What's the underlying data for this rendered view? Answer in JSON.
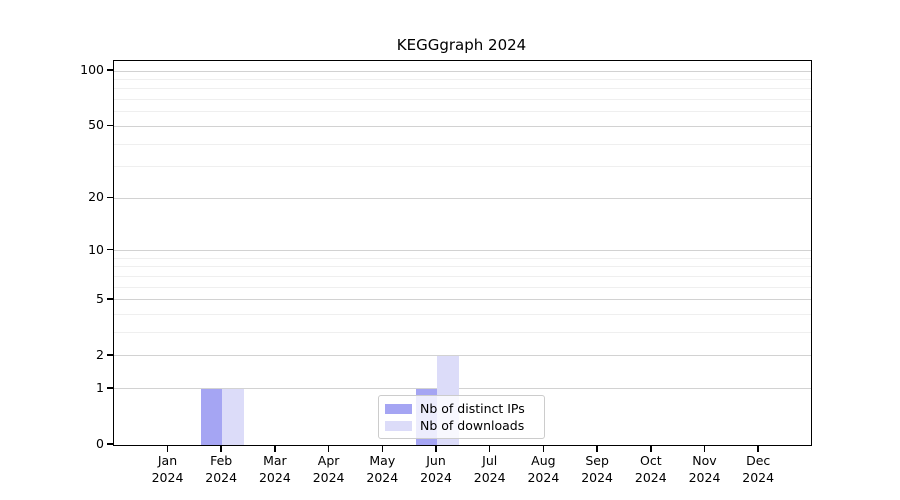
{
  "page": {
    "background": "#ffffff"
  },
  "chart_data": {
    "type": "bar",
    "title": "KEGGgraph 2024",
    "xlabel": "",
    "ylabel": "",
    "x_tick_months": [
      "Jan",
      "Feb",
      "Mar",
      "Apr",
      "May",
      "Jun",
      "Jul",
      "Aug",
      "Sep",
      "Oct",
      "Nov",
      "Dec"
    ],
    "x_tick_year": "2024",
    "categories": [
      "Jan 2024",
      "Feb 2024",
      "Mar 2024",
      "Apr 2024",
      "May 2024",
      "Jun 2024",
      "Jul 2024",
      "Aug 2024",
      "Sep 2024",
      "Oct 2024",
      "Nov 2024",
      "Dec 2024"
    ],
    "series": [
      {
        "name": "Nb of distinct IPs",
        "color": "#a5a5f3",
        "values": [
          0,
          1,
          0,
          0,
          0,
          1,
          0,
          0,
          0,
          0,
          0,
          0
        ]
      },
      {
        "name": "Nb of downloads",
        "color": "#dcdcf9",
        "values": [
          0,
          1,
          0,
          0,
          0,
          2,
          0,
          0,
          0,
          0,
          0,
          0
        ]
      }
    ],
    "y_ticks": [
      0,
      1,
      2,
      5,
      10,
      20,
      50,
      100
    ],
    "y_minor_ticks": [
      3,
      4,
      6,
      7,
      8,
      9,
      30,
      40,
      60,
      70,
      80,
      90
    ],
    "ylim": [
      0,
      100
    ],
    "yscale": "log1p",
    "grid": "horizontal-major-and-minor",
    "legend_position": "lower-center",
    "colors": {
      "grid_major": "#d2d2d2",
      "grid_minor": "#efefef",
      "spine": "#000000",
      "text": "#000000",
      "background": "#ffffff"
    }
  }
}
